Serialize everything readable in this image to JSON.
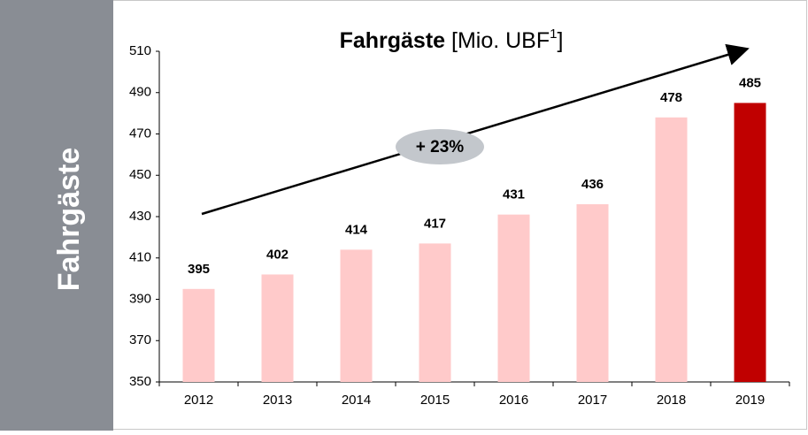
{
  "chart_data": {
    "type": "bar",
    "side_label": "Fahrgäste",
    "title": {
      "bold": "Fahrgäste",
      "text": "[Mio. UBF",
      "superscript": "1",
      "close": "]"
    },
    "annotation": "+ 23%",
    "categories": [
      "2012",
      "2013",
      "2014",
      "2015",
      "2016",
      "2017",
      "2018",
      "2019"
    ],
    "values": [
      395,
      402,
      414,
      417,
      431,
      436,
      478,
      485
    ],
    "colors": [
      "#ffcaca",
      "#ffcaca",
      "#ffcaca",
      "#ffcaca",
      "#ffcaca",
      "#ffcaca",
      "#ffcaca",
      "#c00000"
    ],
    "ylim": [
      350,
      510
    ],
    "yticks": [
      350,
      370,
      390,
      410,
      430,
      450,
      470,
      490,
      510
    ]
  }
}
